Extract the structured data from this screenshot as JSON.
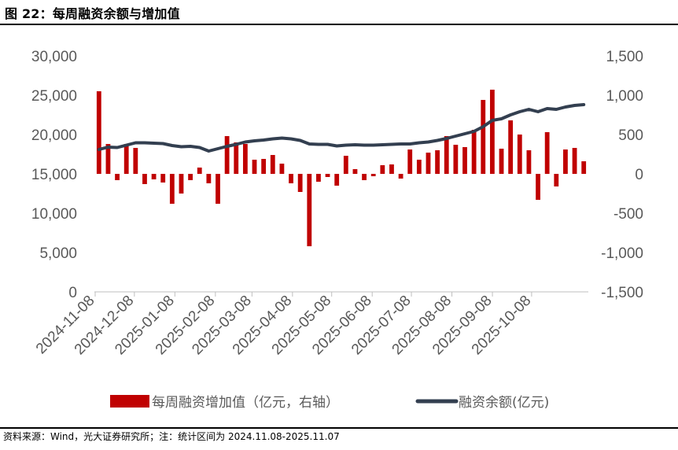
{
  "header": {
    "title": "图 22：每周融资余额与增加值"
  },
  "footer": {
    "source": "资料来源：Wind，光大证券研究所；注：统计区间为 2024.11.08-2025.11.07"
  },
  "colors": {
    "bar": "#C00000",
    "line": "#333F50",
    "axis_text": "#595959"
  },
  "chart_data": {
    "type": "bar+line",
    "x_ticks": [
      "2024-11-08",
      "2024-12-08",
      "2025-01-08",
      "2025-02-08",
      "2025-03-08",
      "2025-04-08",
      "2025-05-08",
      "2025-06-08",
      "2025-07-08",
      "2025-08-08",
      "2025-09-08",
      "2025-10-08"
    ],
    "y_left": {
      "lim": [
        0,
        30000
      ],
      "ticks": [
        "0",
        "5,000",
        "10,000",
        "15,000",
        "20,000",
        "25,000",
        "30,000"
      ]
    },
    "y_right": {
      "lim": [
        -1500,
        1500
      ],
      "ticks": [
        "-1,500",
        "-1,000",
        "-500",
        "0",
        "500",
        "1,000",
        "1,500"
      ]
    },
    "series": [
      {
        "name": "每周融资增加值（亿元，右轴）",
        "type": "bar",
        "axis": "right",
        "values": [
          1050,
          380,
          -80,
          380,
          330,
          -130,
          -70,
          -110,
          -380,
          -250,
          -80,
          80,
          -120,
          -380,
          480,
          400,
          380,
          180,
          190,
          240,
          130,
          -120,
          -230,
          -920,
          -100,
          -40,
          -150,
          230,
          60,
          -80,
          -30,
          110,
          120,
          -60,
          310,
          180,
          270,
          300,
          480,
          370,
          340,
          560,
          940,
          1070,
          320,
          680,
          500,
          300,
          -330,
          530,
          -160,
          310,
          330,
          160
        ]
      },
      {
        "name": "融资余额(亿元)",
        "type": "line",
        "axis": "left",
        "values": [
          18100,
          18400,
          18350,
          18650,
          18950,
          18950,
          18900,
          18850,
          18600,
          18450,
          18500,
          18350,
          17900,
          18200,
          18500,
          18750,
          19050,
          19200,
          19300,
          19450,
          19550,
          19450,
          19250,
          18800,
          18750,
          18750,
          18550,
          18650,
          18700,
          18650,
          18650,
          18700,
          18750,
          18800,
          18800,
          18950,
          19050,
          19250,
          19500,
          19800,
          20100,
          20400,
          21000,
          21800,
          22000,
          22500,
          22900,
          23200,
          22900,
          23300,
          23200,
          23500,
          23700,
          23800
        ]
      }
    ]
  }
}
